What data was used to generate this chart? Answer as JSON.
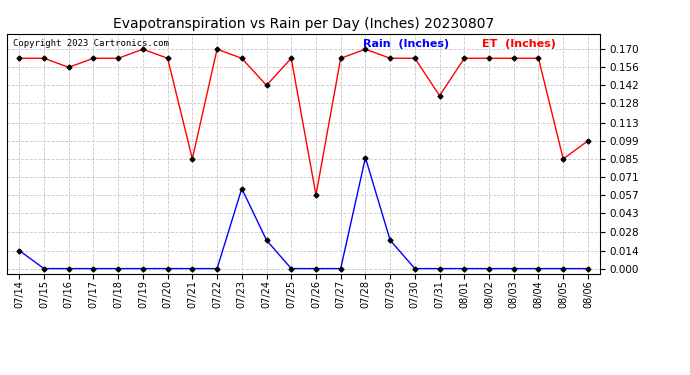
{
  "title": "Evapotranspiration vs Rain per Day (Inches) 20230807",
  "copyright": "Copyright 2023 Cartronics.com",
  "dates": [
    "7/14",
    "7/15",
    "7/16",
    "7/17",
    "7/18",
    "7/19",
    "7/20",
    "7/21",
    "7/22",
    "7/23",
    "7/24",
    "7/25",
    "7/26",
    "7/27",
    "7/28",
    "7/29",
    "7/30",
    "7/31",
    "8/01",
    "8/02",
    "8/03",
    "8/04",
    "8/05",
    "8/06"
  ],
  "rain": [
    0.014,
    0.0,
    0.0,
    0.0,
    0.0,
    0.0,
    0.0,
    0.0,
    0.0,
    0.062,
    0.022,
    0.0,
    0.0,
    0.0,
    0.086,
    0.022,
    0.0,
    0.0,
    0.0,
    0.0,
    0.0,
    0.0,
    0.0,
    0.0
  ],
  "et": [
    0.163,
    0.163,
    0.156,
    0.163,
    0.163,
    0.17,
    0.163,
    0.085,
    0.17,
    0.163,
    0.142,
    0.163,
    0.057,
    0.163,
    0.17,
    0.163,
    0.163,
    0.134,
    0.163,
    0.163,
    0.163,
    0.163,
    0.085,
    0.099
  ],
  "rain_color": "#0000FF",
  "et_color": "#FF0000",
  "marker_color": "#000000",
  "bg_color": "#FFFFFF",
  "grid_color": "#C8C8C8",
  "title_color": "#000000",
  "copyright_color": "#000000",
  "legend_rain_color": "#0000FF",
  "legend_et_color": "#FF0000",
  "yticks": [
    0.0,
    0.014,
    0.028,
    0.043,
    0.057,
    0.071,
    0.085,
    0.099,
    0.113,
    0.128,
    0.142,
    0.156,
    0.17
  ],
  "ylim": [
    -0.004,
    0.182
  ],
  "xlabels": [
    "07/14",
    "07/15",
    "07/16",
    "07/17",
    "07/18",
    "07/19",
    "07/20",
    "07/21",
    "07/22",
    "07/23",
    "07/24",
    "07/25",
    "07/26",
    "07/27",
    "07/28",
    "07/29",
    "07/30",
    "07/31",
    "08/01",
    "08/02",
    "08/03",
    "08/04",
    "08/05",
    "08/06"
  ]
}
